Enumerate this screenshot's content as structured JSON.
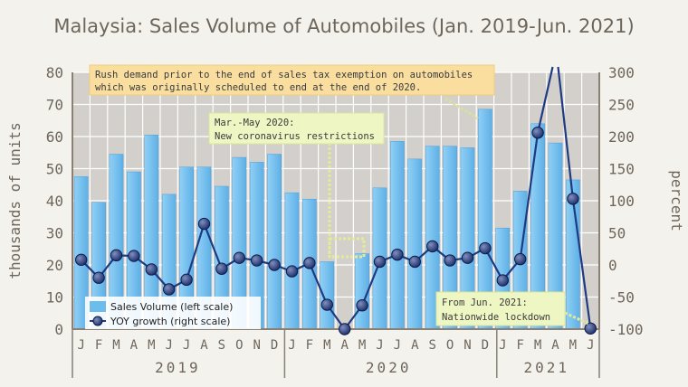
{
  "chart_data": {
    "type": "bar+line",
    "title": "Malaysia: Sales Volume of Automobiles (Jan. 2019-Jun. 2021)",
    "ylabel_left": "thousands of units",
    "ylabel_right": "percent",
    "ylim_left": [
      0,
      80
    ],
    "ylim_right": [
      -100,
      300
    ],
    "yticks_left": [
      "0",
      "10",
      "20",
      "30",
      "40",
      "50",
      "60",
      "70",
      "80"
    ],
    "yticks_right": [
      "-100",
      "-50",
      "0",
      "50",
      "100",
      "150",
      "200",
      "250",
      "300"
    ],
    "grid": true,
    "legend_position": "bottom-left",
    "months": [
      "J",
      "F",
      "M",
      "A",
      "M",
      "J",
      "J",
      "A",
      "S",
      "O",
      "N",
      "D",
      "J",
      "F",
      "M",
      "A",
      "M",
      "J",
      "J",
      "A",
      "S",
      "O",
      "N",
      "D",
      "J",
      "F",
      "M",
      "A",
      "M",
      "J"
    ],
    "years": [
      "2019",
      "2020",
      "2021"
    ],
    "series": [
      {
        "name": "Sales Volume (left scale)",
        "axis": "left",
        "color": "#6cbcec",
        "values": [
          47.5,
          39.5,
          54.5,
          49.0,
          60.5,
          42.0,
          50.5,
          50.5,
          44.5,
          53.5,
          52.0,
          54.5,
          42.5,
          40.5,
          21.0,
          0.1,
          23.5,
          44.0,
          58.5,
          53.0,
          57.0,
          57.0,
          56.5,
          68.5,
          31.5,
          43.0,
          64.0,
          58.0,
          46.5,
          null
        ]
      },
      {
        "name": "YOY growth (right scale)",
        "axis": "right",
        "color": "#1e3a82",
        "values": [
          8,
          -20,
          15,
          14,
          -7,
          -38,
          -23,
          64,
          -6,
          11,
          7,
          0,
          -10,
          3,
          -62,
          -100,
          -63,
          5,
          16,
          5,
          29,
          7,
          11,
          26,
          -24,
          9,
          206,
          null,
          103,
          -99
        ]
      }
    ],
    "annotations": [
      {
        "text_lines": [
          "Rush demand prior to the end of sales tax exemption on automobiles",
          "which was originally scheduled to end at the end of 2020."
        ]
      },
      {
        "text_lines": [
          "Mar.-May 2020:",
          "New coronavirus restrictions"
        ]
      },
      {
        "text_lines": [
          "From Jun. 2021:",
          "Nationwide lockdown"
        ]
      }
    ]
  }
}
